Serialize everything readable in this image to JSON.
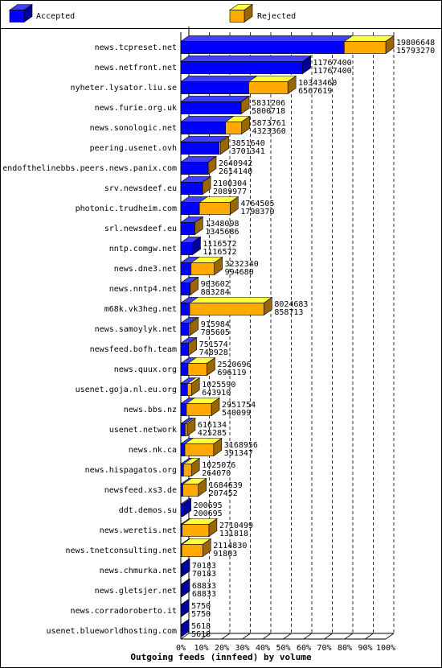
{
  "chart_data": {
    "type": "bar",
    "title": "Outgoing feeds (innfeed) by volume",
    "categories": [
      "news.tcpreset.net",
      "news.netfront.net",
      "nyheter.lysator.liu.se",
      "news.furie.org.uk",
      "news.sonologic.net",
      "peering.usenet.ovh",
      "endofthelinebbs.peers.news.panix.com",
      "srv.newsdeef.eu",
      "photonic.trudheim.com",
      "srl.newsdeef.eu",
      "nntp.comgw.net",
      "news.dne3.net",
      "news.nntp4.net",
      "m68k.vk3heg.net",
      "news.samoylyk.net",
      "newsfeed.bofh.team",
      "news.quux.org",
      "usenet.goja.nl.eu.org",
      "news.bbs.nz",
      "usenet.network",
      "news.nk.ca",
      "news.hispagatos.org",
      "newsfeed.xs3.de",
      "ddt.demos.su",
      "news.weretis.net",
      "news.tnetconsulting.net",
      "news.chmurka.net",
      "news.gletsjer.net",
      "news.corradoroberto.it",
      "usenet.blueworldhosting.com"
    ],
    "totals": [
      19806648,
      11767400,
      10343460,
      5831206,
      5873761,
      3851640,
      2640942,
      2100304,
      4764505,
      1348098,
      1116572,
      3232340,
      903602,
      8024683,
      915984,
      751574,
      2520696,
      1025590,
      2951754,
      616134,
      3168956,
      1025076,
      1684639,
      200695,
      2710499,
      2114830,
      70183,
      68833,
      5750,
      5618
    ],
    "series": [
      {
        "name": "Accepted",
        "color": "#0000ff",
        "values": [
          15793270,
          11767400,
          6567619,
          5800718,
          4323360,
          3701341,
          2614140,
          2089977,
          1798370,
          1345686,
          1116572,
          994680,
          883284,
          858713,
          785605,
          748928,
          696119,
          643910,
          540099,
          425285,
          391347,
          264070,
          207452,
          200695,
          131818,
          91803,
          70183,
          68833,
          5750,
          5618
        ]
      },
      {
        "name": "Rejected",
        "color": "#ffaa00"
      }
    ],
    "xlim": [
      0,
      100
    ],
    "xticks": [
      {
        "value": 0,
        "label": "0%"
      },
      {
        "value": 10,
        "label": "10%"
      },
      {
        "value": 20,
        "label": "20%"
      },
      {
        "value": 30,
        "label": "30%"
      },
      {
        "value": 40,
        "label": "40%"
      },
      {
        "value": 50,
        "label": "50%"
      },
      {
        "value": 60,
        "label": "60%"
      },
      {
        "value": 70,
        "label": "70%"
      },
      {
        "value": 80,
        "label": "80%"
      },
      {
        "value": 90,
        "label": "90%"
      },
      {
        "value": 100,
        "label": "100%"
      }
    ],
    "grid": true
  }
}
